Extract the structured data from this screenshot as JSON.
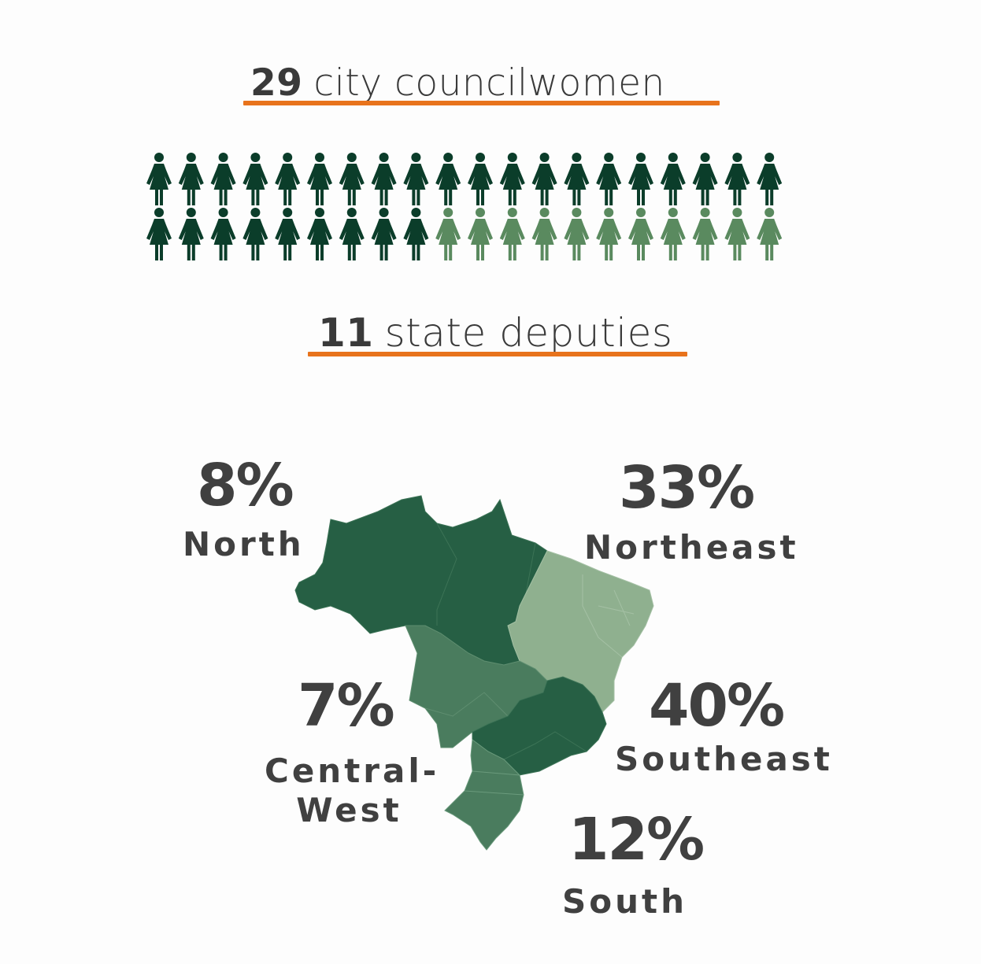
{
  "chart_data": [
    {
      "type": "pictogram",
      "items": [
        {
          "label": "city councilwomen",
          "value": 29,
          "color": "#0b3d2a"
        },
        {
          "label": "state deputies",
          "value": 11,
          "color": "#5a8a5f"
        }
      ],
      "total_icons": 40,
      "icons_per_row": 20
    },
    {
      "type": "choropleth",
      "regions": [
        {
          "name": "North",
          "percent": 8,
          "color": "#265f44"
        },
        {
          "name": "Northeast",
          "percent": 33,
          "color": "#8fb08f"
        },
        {
          "name": "Central-West",
          "percent": 7,
          "color": "#4a7c5e"
        },
        {
          "name": "Southeast",
          "percent": 40,
          "color": "#265f44"
        },
        {
          "name": "South",
          "percent": 12,
          "color": "#4a7c5e"
        }
      ]
    }
  ],
  "headings": {
    "councilwomen": {
      "number": "29",
      "text": "city councilwomen"
    },
    "deputies": {
      "number": "11",
      "text": "state deputies"
    }
  },
  "labels": {
    "north": {
      "percent": "8%",
      "name": "North"
    },
    "northeast": {
      "percent": "33%",
      "name": "Northeast"
    },
    "central_west": {
      "percent": "7%",
      "name": "Central-West"
    },
    "southeast": {
      "percent": "40%",
      "name": "Southeast"
    },
    "south": {
      "percent": "12%",
      "name": "South"
    }
  },
  "colors": {
    "accent": "#e8731c",
    "text": "#3d3d3d"
  }
}
